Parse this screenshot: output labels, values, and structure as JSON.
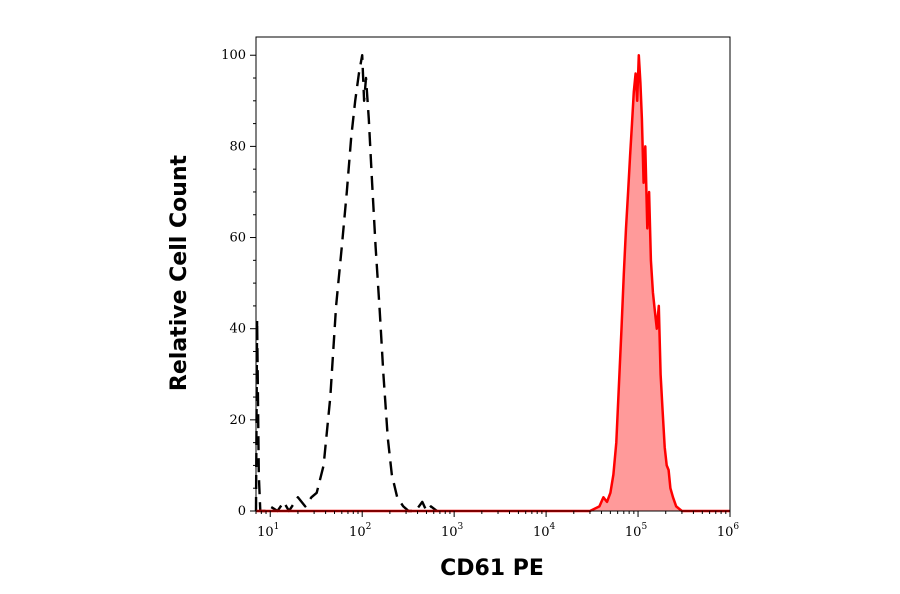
{
  "chart_data": {
    "type": "area",
    "xlabel": "CD61 PE",
    "ylabel": "Relative Cell Count",
    "x_scale": "log",
    "xlim": [
      7,
      1000000
    ],
    "ylim": [
      0,
      104
    ],
    "x_ticks": [
      {
        "value": 10,
        "base": "10",
        "exp": "1"
      },
      {
        "value": 100,
        "base": "10",
        "exp": "2"
      },
      {
        "value": 1000,
        "base": "10",
        "exp": "3"
      },
      {
        "value": 10000,
        "base": "10",
        "exp": "4"
      },
      {
        "value": 100000,
        "base": "10",
        "exp": "5"
      },
      {
        "value": 1000000,
        "base": "10",
        "exp": "6"
      }
    ],
    "y_ticks": [
      0,
      20,
      40,
      60,
      80,
      100
    ],
    "grid": false,
    "series": [
      {
        "style": "dashed",
        "color": "#000000",
        "fill": "none",
        "points": [
          [
            7,
            0
          ],
          [
            7.2,
            42
          ],
          [
            7.5,
            8
          ],
          [
            7.8,
            0
          ],
          [
            9,
            0
          ],
          [
            10,
            1
          ],
          [
            12,
            0
          ],
          [
            14,
            2
          ],
          [
            16,
            0
          ],
          [
            20,
            3
          ],
          [
            24,
            1
          ],
          [
            28,
            3
          ],
          [
            32,
            4
          ],
          [
            38,
            10
          ],
          [
            45,
            25
          ],
          [
            52,
            45
          ],
          [
            60,
            58
          ],
          [
            68,
            70
          ],
          [
            76,
            82
          ],
          [
            84,
            90
          ],
          [
            92,
            96
          ],
          [
            100,
            100
          ],
          [
            105,
            90
          ],
          [
            110,
            95
          ],
          [
            118,
            86
          ],
          [
            128,
            72
          ],
          [
            140,
            58
          ],
          [
            155,
            44
          ],
          [
            170,
            30
          ],
          [
            190,
            16
          ],
          [
            210,
            8
          ],
          [
            240,
            3
          ],
          [
            280,
            1
          ],
          [
            320,
            0
          ],
          [
            380,
            0
          ],
          [
            450,
            2
          ],
          [
            500,
            0
          ],
          [
            560,
            1
          ],
          [
            650,
            0
          ]
        ]
      },
      {
        "style": "solid",
        "color": "#ff0000",
        "fill": "#ff9a9a",
        "points": [
          [
            7,
            0
          ],
          [
            30000,
            0
          ],
          [
            38000,
            1
          ],
          [
            42000,
            3
          ],
          [
            46000,
            2
          ],
          [
            50000,
            4
          ],
          [
            54000,
            8
          ],
          [
            58000,
            15
          ],
          [
            62000,
            28
          ],
          [
            66000,
            40
          ],
          [
            70000,
            52
          ],
          [
            74000,
            62
          ],
          [
            78000,
            70
          ],
          [
            82000,
            78
          ],
          [
            86000,
            85
          ],
          [
            90000,
            92
          ],
          [
            94000,
            96
          ],
          [
            98000,
            90
          ],
          [
            102000,
            100
          ],
          [
            106000,
            94
          ],
          [
            110000,
            86
          ],
          [
            115000,
            72
          ],
          [
            120000,
            80
          ],
          [
            126000,
            62
          ],
          [
            132000,
            70
          ],
          [
            138000,
            55
          ],
          [
            145000,
            48
          ],
          [
            152000,
            44
          ],
          [
            160000,
            40
          ],
          [
            168000,
            45
          ],
          [
            176000,
            30
          ],
          [
            185000,
            22
          ],
          [
            195000,
            14
          ],
          [
            205000,
            10
          ],
          [
            215000,
            9
          ],
          [
            225000,
            5
          ],
          [
            240000,
            3
          ],
          [
            260000,
            1
          ],
          [
            300000,
            0
          ],
          [
            1000000,
            0
          ]
        ]
      }
    ]
  }
}
